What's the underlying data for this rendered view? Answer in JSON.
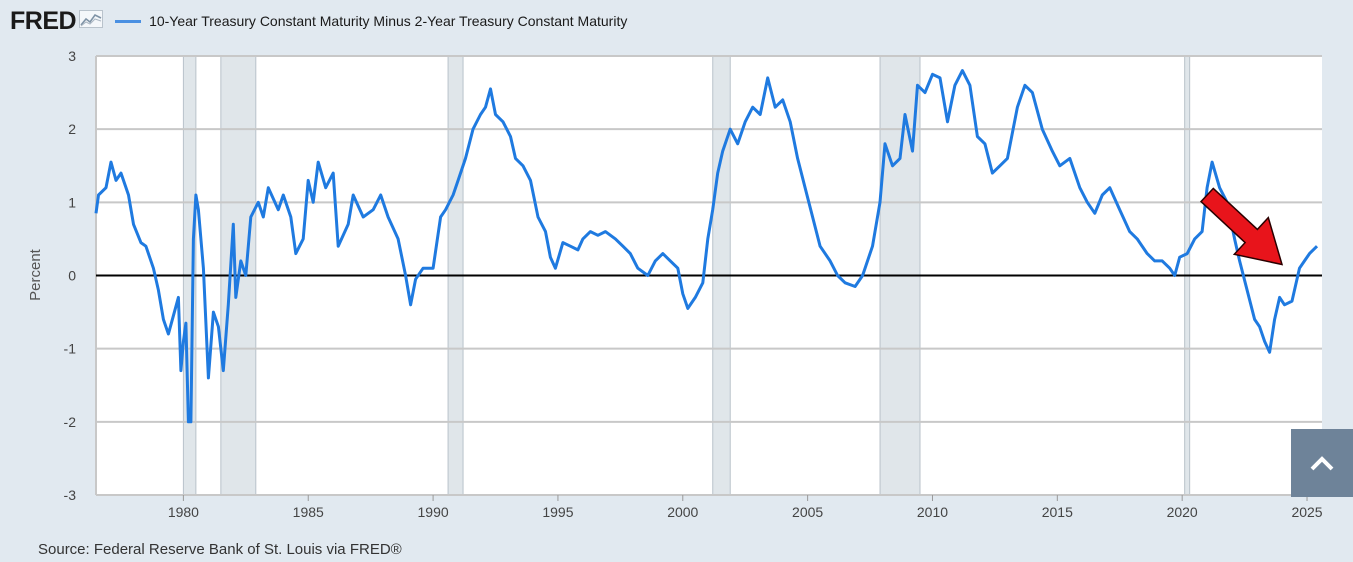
{
  "header": {
    "logo_text": "FRED",
    "legend_label": "10-Year Treasury Constant Maturity Minus 2-Year Treasury Constant Maturity"
  },
  "footer": {
    "source": "Source: Federal Reserve Bank of St. Louis via FRED®"
  },
  "colors": {
    "series": "#1f7ae0",
    "recession": "#e0e6ea",
    "arrow": "#e8141b",
    "background": "#e1e9f0"
  },
  "icons": {
    "logo_icon": "line-chart-icon",
    "scroll_top": "chevron-up-icon"
  },
  "chart_data": {
    "type": "line",
    "title": "10-Year Treasury Constant Maturity Minus 2-Year Treasury Constant Maturity",
    "xlabel": "",
    "ylabel": "Percent",
    "xlim": [
      1976.5,
      2025.6
    ],
    "ylim": [
      -3,
      3
    ],
    "x_ticks": [
      1980,
      1985,
      1990,
      1995,
      2000,
      2005,
      2010,
      2015,
      2020,
      2025
    ],
    "y_ticks": [
      -3,
      -2,
      -1,
      0,
      1,
      2,
      3
    ],
    "reference_line": 0,
    "recessions": [
      [
        1980.0,
        1980.5
      ],
      [
        1981.5,
        1982.9
      ],
      [
        1990.6,
        1991.2
      ],
      [
        2001.2,
        2001.9
      ],
      [
        2007.9,
        2009.5
      ],
      [
        2020.1,
        2020.3
      ]
    ],
    "annotation": {
      "type": "arrow",
      "from": [
        2021.0,
        1.1
      ],
      "to": [
        2024.0,
        0.15
      ]
    },
    "series": [
      {
        "name": "10-Year Treasury Constant Maturity Minus 2-Year Treasury Constant Maturity",
        "points": [
          [
            1976.5,
            0.85
          ],
          [
            1976.6,
            1.1
          ],
          [
            1976.9,
            1.2
          ],
          [
            1977.1,
            1.55
          ],
          [
            1977.3,
            1.3
          ],
          [
            1977.5,
            1.4
          ],
          [
            1977.8,
            1.1
          ],
          [
            1978.0,
            0.7
          ],
          [
            1978.3,
            0.45
          ],
          [
            1978.5,
            0.4
          ],
          [
            1978.8,
            0.1
          ],
          [
            1979.0,
            -0.2
          ],
          [
            1979.2,
            -0.6
          ],
          [
            1979.4,
            -0.8
          ],
          [
            1979.6,
            -0.55
          ],
          [
            1979.8,
            -0.3
          ],
          [
            1979.9,
            -1.3
          ],
          [
            1980.0,
            -0.9
          ],
          [
            1980.1,
            -0.65
          ],
          [
            1980.2,
            -2.0
          ],
          [
            1980.3,
            -2.0
          ],
          [
            1980.4,
            0.5
          ],
          [
            1980.5,
            1.1
          ],
          [
            1980.6,
            0.9
          ],
          [
            1980.8,
            0.1
          ],
          [
            1981.0,
            -1.4
          ],
          [
            1981.2,
            -0.5
          ],
          [
            1981.4,
            -0.7
          ],
          [
            1981.6,
            -1.3
          ],
          [
            1981.8,
            -0.4
          ],
          [
            1982.0,
            0.7
          ],
          [
            1982.1,
            -0.3
          ],
          [
            1982.3,
            0.2
          ],
          [
            1982.5,
            0.0
          ],
          [
            1982.7,
            0.8
          ],
          [
            1983.0,
            1.0
          ],
          [
            1983.2,
            0.8
          ],
          [
            1983.4,
            1.2
          ],
          [
            1983.8,
            0.9
          ],
          [
            1984.0,
            1.1
          ],
          [
            1984.3,
            0.8
          ],
          [
            1984.5,
            0.3
          ],
          [
            1984.8,
            0.5
          ],
          [
            1985.0,
            1.3
          ],
          [
            1985.2,
            1.0
          ],
          [
            1985.4,
            1.55
          ],
          [
            1985.7,
            1.2
          ],
          [
            1986.0,
            1.4
          ],
          [
            1986.2,
            0.4
          ],
          [
            1986.6,
            0.7
          ],
          [
            1986.8,
            1.1
          ],
          [
            1987.2,
            0.8
          ],
          [
            1987.6,
            0.9
          ],
          [
            1987.9,
            1.1
          ],
          [
            1988.2,
            0.8
          ],
          [
            1988.6,
            0.5
          ],
          [
            1988.9,
            0.0
          ],
          [
            1989.1,
            -0.4
          ],
          [
            1989.3,
            -0.05
          ],
          [
            1989.6,
            0.1
          ],
          [
            1990.0,
            0.1
          ],
          [
            1990.3,
            0.8
          ],
          [
            1990.5,
            0.9
          ],
          [
            1990.8,
            1.1
          ],
          [
            1991.0,
            1.3
          ],
          [
            1991.3,
            1.6
          ],
          [
            1991.6,
            2.0
          ],
          [
            1991.9,
            2.2
          ],
          [
            1992.1,
            2.3
          ],
          [
            1992.3,
            2.55
          ],
          [
            1992.5,
            2.2
          ],
          [
            1992.8,
            2.1
          ],
          [
            1993.1,
            1.9
          ],
          [
            1993.3,
            1.6
          ],
          [
            1993.6,
            1.5
          ],
          [
            1993.9,
            1.3
          ],
          [
            1994.2,
            0.8
          ],
          [
            1994.5,
            0.6
          ],
          [
            1994.7,
            0.25
          ],
          [
            1994.9,
            0.1
          ],
          [
            1995.2,
            0.45
          ],
          [
            1995.5,
            0.4
          ],
          [
            1995.8,
            0.35
          ],
          [
            1996.0,
            0.5
          ],
          [
            1996.3,
            0.6
          ],
          [
            1996.6,
            0.55
          ],
          [
            1996.9,
            0.6
          ],
          [
            1997.3,
            0.5
          ],
          [
            1997.6,
            0.4
          ],
          [
            1997.9,
            0.3
          ],
          [
            1998.2,
            0.1
          ],
          [
            1998.6,
            0.0
          ],
          [
            1998.9,
            0.2
          ],
          [
            1999.2,
            0.3
          ],
          [
            1999.5,
            0.2
          ],
          [
            1999.8,
            0.1
          ],
          [
            2000.0,
            -0.25
          ],
          [
            2000.2,
            -0.45
          ],
          [
            2000.5,
            -0.3
          ],
          [
            2000.8,
            -0.1
          ],
          [
            2001.0,
            0.5
          ],
          [
            2001.2,
            0.9
          ],
          [
            2001.4,
            1.4
          ],
          [
            2001.6,
            1.7
          ],
          [
            2001.9,
            2.0
          ],
          [
            2002.2,
            1.8
          ],
          [
            2002.5,
            2.1
          ],
          [
            2002.8,
            2.3
          ],
          [
            2003.1,
            2.2
          ],
          [
            2003.4,
            2.7
          ],
          [
            2003.7,
            2.3
          ],
          [
            2004.0,
            2.4
          ],
          [
            2004.3,
            2.1
          ],
          [
            2004.6,
            1.6
          ],
          [
            2004.9,
            1.2
          ],
          [
            2005.2,
            0.8
          ],
          [
            2005.5,
            0.4
          ],
          [
            2005.9,
            0.2
          ],
          [
            2006.2,
            0.0
          ],
          [
            2006.5,
            -0.1
          ],
          [
            2006.9,
            -0.15
          ],
          [
            2007.2,
            0.0
          ],
          [
            2007.6,
            0.4
          ],
          [
            2007.9,
            1.0
          ],
          [
            2008.1,
            1.8
          ],
          [
            2008.4,
            1.5
          ],
          [
            2008.7,
            1.6
          ],
          [
            2008.9,
            2.2
          ],
          [
            2009.2,
            1.7
          ],
          [
            2009.4,
            2.6
          ],
          [
            2009.7,
            2.5
          ],
          [
            2010.0,
            2.75
          ],
          [
            2010.3,
            2.7
          ],
          [
            2010.6,
            2.1
          ],
          [
            2010.9,
            2.6
          ],
          [
            2011.2,
            2.8
          ],
          [
            2011.5,
            2.6
          ],
          [
            2011.8,
            1.9
          ],
          [
            2012.1,
            1.8
          ],
          [
            2012.4,
            1.4
          ],
          [
            2012.7,
            1.5
          ],
          [
            2013.0,
            1.6
          ],
          [
            2013.4,
            2.3
          ],
          [
            2013.7,
            2.6
          ],
          [
            2014.0,
            2.5
          ],
          [
            2014.4,
            2.0
          ],
          [
            2014.8,
            1.7
          ],
          [
            2015.1,
            1.5
          ],
          [
            2015.5,
            1.6
          ],
          [
            2015.9,
            1.2
          ],
          [
            2016.2,
            1.0
          ],
          [
            2016.5,
            0.85
          ],
          [
            2016.8,
            1.1
          ],
          [
            2017.1,
            1.2
          ],
          [
            2017.5,
            0.9
          ],
          [
            2017.9,
            0.6
          ],
          [
            2018.2,
            0.5
          ],
          [
            2018.6,
            0.3
          ],
          [
            2018.9,
            0.2
          ],
          [
            2019.2,
            0.2
          ],
          [
            2019.5,
            0.1
          ],
          [
            2019.7,
            0.0
          ],
          [
            2019.9,
            0.25
          ],
          [
            2020.2,
            0.3
          ],
          [
            2020.5,
            0.5
          ],
          [
            2020.8,
            0.6
          ],
          [
            2021.0,
            1.2
          ],
          [
            2021.2,
            1.55
          ],
          [
            2021.5,
            1.2
          ],
          [
            2021.8,
            1.0
          ],
          [
            2022.1,
            0.5
          ],
          [
            2022.3,
            0.2
          ],
          [
            2022.6,
            -0.2
          ],
          [
            2022.9,
            -0.6
          ],
          [
            2023.1,
            -0.7
          ],
          [
            2023.3,
            -0.9
          ],
          [
            2023.5,
            -1.05
          ],
          [
            2023.7,
            -0.6
          ],
          [
            2023.9,
            -0.3
          ],
          [
            2024.1,
            -0.4
          ],
          [
            2024.4,
            -0.35
          ],
          [
            2024.7,
            0.1
          ],
          [
            2024.9,
            0.2
          ],
          [
            2025.1,
            0.3
          ],
          [
            2025.4,
            0.4
          ]
        ]
      }
    ]
  }
}
